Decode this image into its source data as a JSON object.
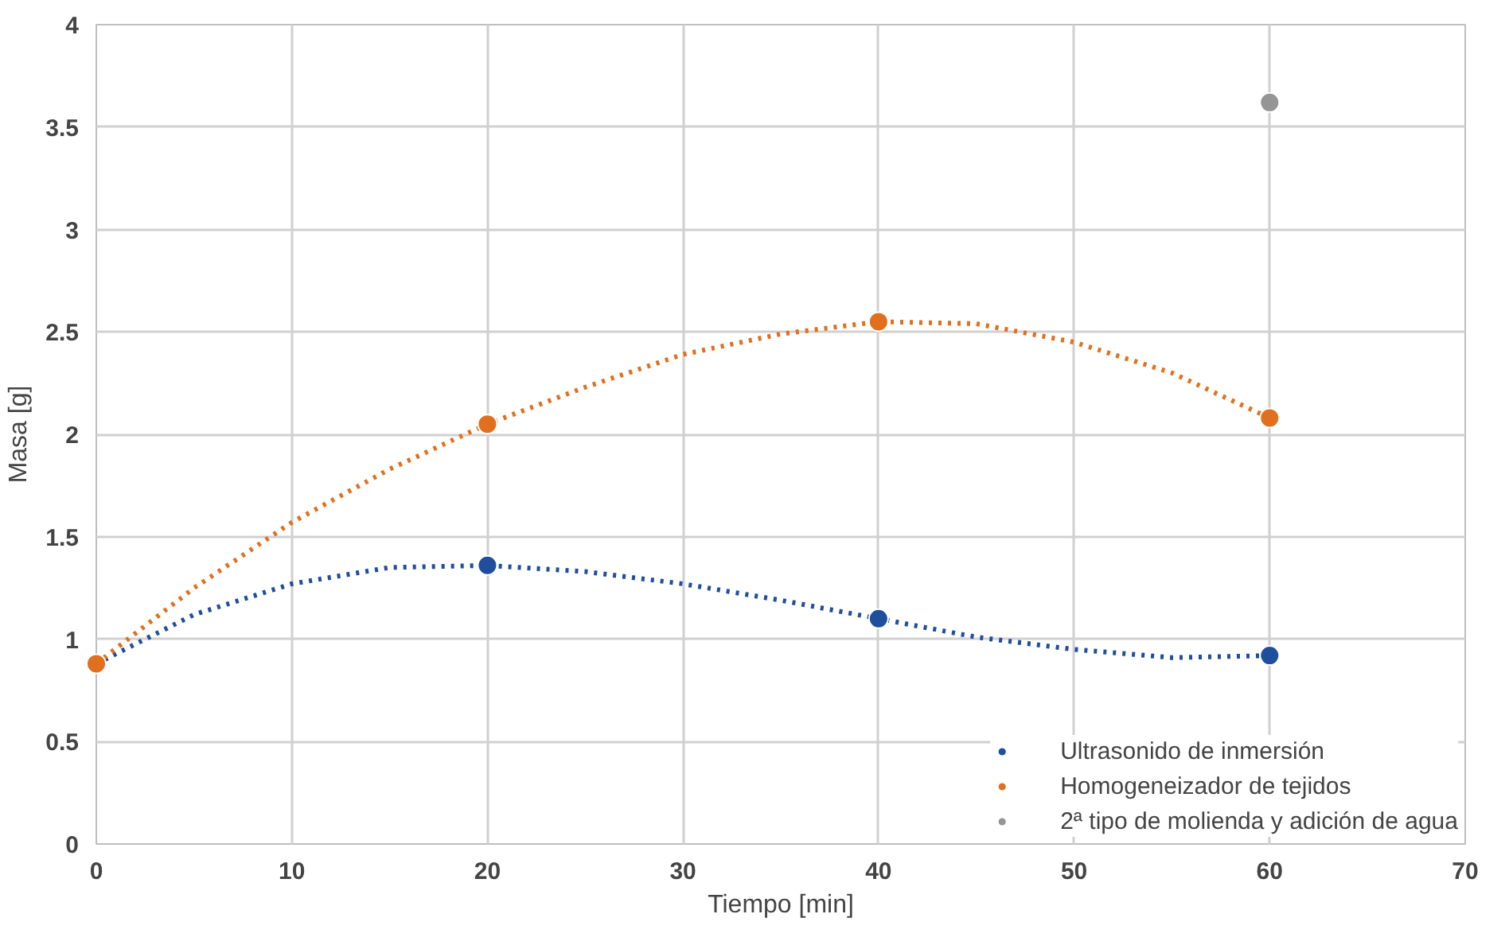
{
  "chart_data": {
    "type": "scatter",
    "xlabel": "Tiempo [min]",
    "ylabel": "Masa [g]",
    "xlim": [
      0,
      70
    ],
    "ylim": [
      0,
      4
    ],
    "xticks": [
      0,
      10,
      20,
      30,
      40,
      50,
      60,
      70
    ],
    "yticks": [
      0,
      0.5,
      1,
      1.5,
      2,
      2.5,
      3,
      3.5,
      4
    ],
    "grid": true,
    "legend": "bottom right",
    "marker": "circle",
    "series": [
      {
        "name": "Ultrasonido de inmersión",
        "color": "#1f4e9c",
        "x": [
          20,
          40,
          60
        ],
        "values": [
          1.36,
          1.1,
          0.92
        ]
      },
      {
        "name": "Homogeneizador de tejidos",
        "color": "#e0701e",
        "x": [
          0,
          20,
          40,
          60
        ],
        "values": [
          0.88,
          2.05,
          2.55,
          2.08
        ]
      },
      {
        "name": "2ª tipo de molienda y adición de agua",
        "color": "#959595",
        "x": [
          60
        ],
        "values": [
          3.62
        ]
      },
      {
        "type": "line",
        "marker": "none",
        "line_style": "dotted",
        "color": "#1f4e9c",
        "x": [
          0,
          5,
          10,
          15,
          20,
          25,
          30,
          35,
          40,
          45,
          50,
          55,
          60
        ],
        "values": [
          0.88,
          1.12,
          1.27,
          1.35,
          1.36,
          1.33,
          1.27,
          1.19,
          1.1,
          1.01,
          0.95,
          0.91,
          0.92
        ]
      },
      {
        "type": "line",
        "marker": "none",
        "line_style": "dotted",
        "color": "#e0701e",
        "x": [
          0,
          5,
          10,
          15,
          20,
          25,
          30,
          35,
          40,
          45,
          50,
          55,
          60
        ],
        "values": [
          0.88,
          1.25,
          1.57,
          1.83,
          2.05,
          2.23,
          2.39,
          2.49,
          2.55,
          2.54,
          2.45,
          2.3,
          2.08
        ]
      }
    ]
  }
}
